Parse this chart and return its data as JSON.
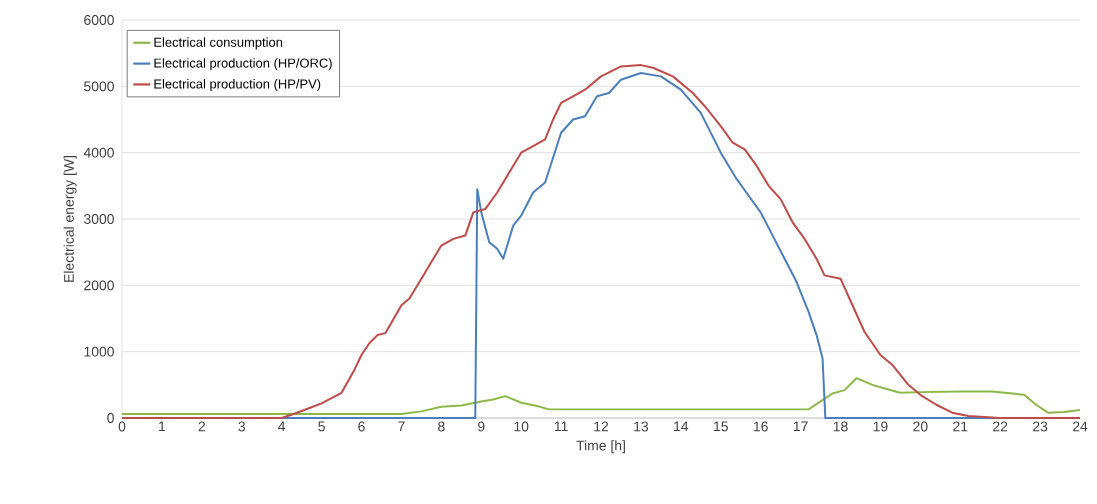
{
  "chart_data": {
    "type": "line",
    "xlabel": "Time [h]",
    "ylabel": "Electrical energy [W]",
    "xlim": [
      0,
      24
    ],
    "xticks": [
      0,
      1,
      2,
      3,
      4,
      5,
      6,
      7,
      8,
      9,
      10,
      11,
      12,
      13,
      14,
      15,
      16,
      17,
      18,
      19,
      20,
      21,
      22,
      23,
      24
    ],
    "ylim": [
      0,
      6000
    ],
    "yticks": [
      0,
      1000,
      2000,
      3000,
      4000,
      5000,
      6000
    ],
    "grid": "y",
    "legend": "top left",
    "marker": "none",
    "line_style": "solid",
    "series": [
      {
        "name": "Electrical consumption",
        "color": "#8cb848",
        "x": [
          0,
          7,
          7.5,
          8,
          8.5,
          9,
          9.3,
          9.6,
          10,
          10.4,
          10.7,
          17.2,
          17.5,
          17.8,
          18.1,
          18.4,
          18.8,
          19.2,
          19.5,
          20,
          21,
          21.8,
          22.3,
          22.6,
          22.9,
          23.2,
          23.6,
          24
        ],
        "values": [
          60,
          60,
          100,
          170,
          190,
          250,
          280,
          330,
          230,
          180,
          130,
          130,
          250,
          370,
          420,
          600,
          500,
          430,
          380,
          390,
          400,
          400,
          370,
          350,
          200,
          80,
          90,
          120
        ]
      },
      {
        "name": "Electrical production (HP/ORC)",
        "color": "#4a7ebb",
        "x": [
          0,
          8.85,
          8.9,
          9,
          9.2,
          9.4,
          9.55,
          9.8,
          10,
          10.3,
          10.6,
          11,
          11.3,
          11.6,
          11.9,
          12.2,
          12.5,
          13,
          13.5,
          14,
          14.5,
          15,
          15.4,
          15.7,
          16,
          16.3,
          16.6,
          16.9,
          17.2,
          17.4,
          17.55,
          17.62,
          24
        ],
        "values": [
          0,
          0,
          3450,
          3100,
          2650,
          2550,
          2400,
          2900,
          3050,
          3400,
          3550,
          4300,
          4500,
          4550,
          4850,
          4900,
          5100,
          5200,
          5150,
          4950,
          4600,
          4000,
          3600,
          3350,
          3100,
          2750,
          2400,
          2050,
          1600,
          1250,
          900,
          0,
          0
        ]
      },
      {
        "name": "Electrical production (HP/PV)",
        "color": "#be4b48",
        "x": [
          0,
          4,
          4.3,
          4.7,
          5,
          5.5,
          5.8,
          6,
          6.2,
          6.4,
          6.6,
          7,
          7.2,
          7.5,
          7.8,
          8,
          8.3,
          8.6,
          8.8,
          9.1,
          9.4,
          9.7,
          10,
          10.3,
          10.6,
          10.8,
          11,
          11.3,
          11.6,
          12,
          12.5,
          13,
          13.3,
          13.8,
          14.3,
          14.6,
          15,
          15.3,
          15.6,
          15.9,
          16.2,
          16.5,
          16.8,
          17.1,
          17.4,
          17.6,
          18,
          18.3,
          18.6,
          19,
          19.3,
          19.7,
          20,
          20.4,
          20.8,
          21.2,
          22,
          24
        ],
        "values": [
          0,
          0,
          60,
          150,
          220,
          380,
          700,
          950,
          1130,
          1250,
          1280,
          1700,
          1800,
          2100,
          2400,
          2600,
          2700,
          2750,
          3100,
          3150,
          3400,
          3700,
          4000,
          4100,
          4200,
          4500,
          4750,
          4850,
          4950,
          5150,
          5300,
          5320,
          5280,
          5150,
          4900,
          4700,
          4400,
          4150,
          4050,
          3800,
          3500,
          3300,
          2950,
          2700,
          2400,
          2150,
          2100,
          1700,
          1300,
          950,
          800,
          500,
          350,
          200,
          80,
          30,
          0,
          0
        ]
      }
    ]
  }
}
